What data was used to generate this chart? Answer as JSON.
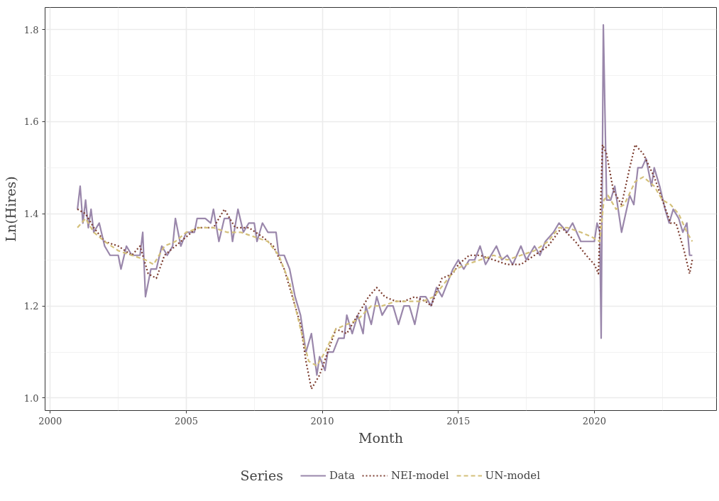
{
  "chart_data": {
    "type": "line",
    "xlabel": "Month",
    "ylabel": "Ln(Hires)",
    "legend_title": "Series",
    "legend": "bottom",
    "grid": true,
    "xlim": [
      1999.81,
      2024.49
    ],
    "ylim": [
      0.973,
      1.848
    ],
    "xticks": [
      2000,
      2005,
      2010,
      2015,
      2020
    ],
    "yticks": [
      {
        "value": 1.0,
        "label": "1.0"
      },
      {
        "value": 1.2,
        "label": "1.2"
      },
      {
        "value": 1.4,
        "label": "1.4"
      },
      {
        "value": 1.6,
        "label": "1.6"
      },
      {
        "value": 1.8,
        "label": "1.8"
      }
    ],
    "series": [
      {
        "name": "Data",
        "color": "#9a87ab",
        "line_style": "solid",
        "x": [
          2001.0,
          2001.1,
          2001.2,
          2001.3,
          2001.4,
          2001.5,
          2001.6,
          2001.8,
          2002.0,
          2002.2,
          2002.5,
          2002.6,
          2002.8,
          2003.0,
          2003.3,
          2003.4,
          2003.5,
          2003.7,
          2003.9,
          2004.1,
          2004.3,
          2004.5,
          2004.6,
          2004.8,
          2005.0,
          2005.3,
          2005.4,
          2005.7,
          2005.9,
          2006.0,
          2006.2,
          2006.4,
          2006.6,
          2006.7,
          2006.9,
          2007.1,
          2007.3,
          2007.5,
          2007.6,
          2007.8,
          2008.0,
          2008.3,
          2008.4,
          2008.6,
          2008.8,
          2009.0,
          2009.2,
          2009.4,
          2009.6,
          2009.8,
          2009.9,
          2010.1,
          2010.2,
          2010.4,
          2010.6,
          2010.8,
          2010.9,
          2011.1,
          2011.3,
          2011.5,
          2011.6,
          2011.8,
          2012.0,
          2012.2,
          2012.4,
          2012.6,
          2012.8,
          2013.0,
          2013.2,
          2013.4,
          2013.6,
          2013.8,
          2014.0,
          2014.2,
          2014.4,
          2014.6,
          2014.8,
          2015.0,
          2015.2,
          2015.4,
          2015.6,
          2015.8,
          2016.0,
          2016.2,
          2016.4,
          2016.6,
          2016.8,
          2017.0,
          2017.3,
          2017.5,
          2017.8,
          2018.0,
          2018.2,
          2018.5,
          2018.7,
          2019.0,
          2019.2,
          2019.5,
          2019.8,
          2020.0,
          2020.1,
          2020.2,
          2020.25,
          2020.33,
          2020.45,
          2020.6,
          2020.75,
          2021.0,
          2021.3,
          2021.45,
          2021.6,
          2021.75,
          2021.9,
          2022.1,
          2022.2,
          2022.4,
          2022.6,
          2022.75,
          2022.9,
          2023.1,
          2023.25,
          2023.4,
          2023.5,
          2023.6
        ],
        "values": [
          1.41,
          1.46,
          1.38,
          1.43,
          1.37,
          1.41,
          1.36,
          1.38,
          1.33,
          1.31,
          1.31,
          1.28,
          1.33,
          1.31,
          1.31,
          1.36,
          1.22,
          1.28,
          1.28,
          1.33,
          1.31,
          1.33,
          1.39,
          1.33,
          1.36,
          1.36,
          1.39,
          1.39,
          1.38,
          1.41,
          1.34,
          1.39,
          1.39,
          1.34,
          1.41,
          1.36,
          1.38,
          1.38,
          1.34,
          1.38,
          1.36,
          1.36,
          1.31,
          1.31,
          1.28,
          1.22,
          1.18,
          1.1,
          1.14,
          1.05,
          1.09,
          1.06,
          1.1,
          1.1,
          1.13,
          1.13,
          1.18,
          1.14,
          1.18,
          1.14,
          1.2,
          1.16,
          1.22,
          1.18,
          1.2,
          1.2,
          1.16,
          1.2,
          1.2,
          1.16,
          1.22,
          1.22,
          1.2,
          1.24,
          1.22,
          1.25,
          1.28,
          1.3,
          1.28,
          1.3,
          1.3,
          1.33,
          1.29,
          1.31,
          1.33,
          1.3,
          1.31,
          1.29,
          1.33,
          1.3,
          1.33,
          1.31,
          1.34,
          1.36,
          1.38,
          1.36,
          1.38,
          1.34,
          1.34,
          1.34,
          1.38,
          1.36,
          1.13,
          1.81,
          1.43,
          1.43,
          1.46,
          1.36,
          1.44,
          1.42,
          1.5,
          1.5,
          1.52,
          1.46,
          1.5,
          1.46,
          1.41,
          1.38,
          1.41,
          1.39,
          1.36,
          1.38,
          1.31,
          1.31
        ]
      },
      {
        "name": "NEI-model",
        "color": "#7b3b2e",
        "line_style": "dotted",
        "x": [
          2001.0,
          2001.3,
          2001.6,
          2002.0,
          2002.5,
          2003.0,
          2003.3,
          2003.6,
          2003.9,
          2004.2,
          2004.6,
          2005.0,
          2005.4,
          2006.0,
          2006.4,
          2006.8,
          2007.3,
          2007.8,
          2008.2,
          2008.6,
          2008.9,
          2009.2,
          2009.4,
          2009.6,
          2009.9,
          2010.2,
          2010.5,
          2010.9,
          2011.3,
          2011.7,
          2012.0,
          2012.3,
          2012.7,
          2013.0,
          2013.4,
          2013.8,
          2014.0,
          2014.4,
          2014.8,
          2015.0,
          2015.4,
          2015.8,
          2016.3,
          2016.8,
          2017.3,
          2017.8,
          2018.3,
          2018.8,
          2019.3,
          2019.7,
          2020.0,
          2020.15,
          2020.3,
          2020.45,
          2020.7,
          2021.0,
          2021.3,
          2021.5,
          2021.8,
          2022.2,
          2022.5,
          2022.8,
          2023.0,
          2023.3,
          2023.5,
          2023.6
        ],
        "values": [
          1.41,
          1.4,
          1.37,
          1.34,
          1.33,
          1.31,
          1.33,
          1.27,
          1.26,
          1.31,
          1.33,
          1.35,
          1.37,
          1.37,
          1.41,
          1.37,
          1.37,
          1.35,
          1.33,
          1.28,
          1.22,
          1.16,
          1.08,
          1.02,
          1.05,
          1.1,
          1.15,
          1.14,
          1.18,
          1.22,
          1.24,
          1.22,
          1.21,
          1.21,
          1.22,
          1.21,
          1.2,
          1.26,
          1.27,
          1.29,
          1.31,
          1.31,
          1.3,
          1.29,
          1.29,
          1.31,
          1.33,
          1.37,
          1.34,
          1.31,
          1.29,
          1.27,
          1.55,
          1.53,
          1.45,
          1.42,
          1.5,
          1.55,
          1.53,
          1.48,
          1.43,
          1.38,
          1.38,
          1.32,
          1.27,
          1.3
        ]
      },
      {
        "name": "UN-model",
        "color": "#d4c07a",
        "line_style": "dashed",
        "x": [
          2001.0,
          2001.3,
          2001.6,
          2002.0,
          2002.5,
          2003.0,
          2003.5,
          2003.8,
          2004.2,
          2004.6,
          2005.0,
          2005.5,
          2006.0,
          2006.5,
          2007.0,
          2007.5,
          2008.0,
          2008.4,
          2008.8,
          2009.2,
          2009.5,
          2009.8,
          2010.1,
          2010.5,
          2010.9,
          2011.3,
          2011.8,
          2012.2,
          2012.7,
          2013.2,
          2013.7,
          2014.1,
          2014.5,
          2014.9,
          2015.3,
          2015.8,
          2016.3,
          2016.8,
          2017.3,
          2017.8,
          2018.3,
          2018.7,
          2019.0,
          2019.5,
          2019.9,
          2020.2,
          2020.35,
          2020.5,
          2020.8,
          2021.1,
          2021.5,
          2021.8,
          2022.2,
          2022.5,
          2022.8,
          2023.1,
          2023.4,
          2023.6
        ],
        "values": [
          1.37,
          1.39,
          1.36,
          1.34,
          1.32,
          1.31,
          1.3,
          1.29,
          1.33,
          1.34,
          1.36,
          1.37,
          1.37,
          1.36,
          1.36,
          1.35,
          1.34,
          1.31,
          1.25,
          1.15,
          1.08,
          1.07,
          1.1,
          1.15,
          1.16,
          1.17,
          1.2,
          1.2,
          1.21,
          1.21,
          1.21,
          1.22,
          1.25,
          1.28,
          1.29,
          1.3,
          1.31,
          1.3,
          1.31,
          1.32,
          1.34,
          1.37,
          1.37,
          1.36,
          1.35,
          1.34,
          1.43,
          1.44,
          1.41,
          1.42,
          1.47,
          1.48,
          1.46,
          1.43,
          1.42,
          1.4,
          1.36,
          1.34
        ]
      }
    ]
  }
}
